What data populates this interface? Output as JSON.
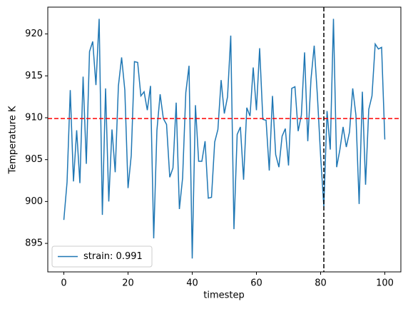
{
  "chart_data": {
    "type": "line",
    "xlabel": "timestep",
    "ylabel": "Temperature K",
    "x": [
      0,
      1,
      2,
      3,
      4,
      5,
      6,
      7,
      8,
      9,
      10,
      11,
      12,
      13,
      14,
      15,
      16,
      17,
      18,
      19,
      20,
      21,
      22,
      23,
      24,
      25,
      26,
      27,
      28,
      29,
      30,
      31,
      32,
      33,
      34,
      35,
      36,
      37,
      38,
      39,
      40,
      41,
      42,
      43,
      44,
      45,
      46,
      47,
      48,
      49,
      50,
      51,
      52,
      53,
      54,
      55,
      56,
      57,
      58,
      59,
      60,
      61,
      62,
      63,
      64,
      65,
      66,
      67,
      68,
      69,
      70,
      71,
      72,
      73,
      74,
      75,
      76,
      77,
      78,
      79,
      80,
      81,
      82,
      83,
      84,
      85,
      86,
      87,
      88,
      89,
      90,
      91,
      92,
      93,
      94,
      95,
      96,
      97,
      98,
      99,
      100
    ],
    "series": [
      {
        "name": "strain: 0.991",
        "color": "#1f77b4",
        "values": [
          897.8,
          902.3,
          913.3,
          902.4,
          908.5,
          902.2,
          914.9,
          904.5,
          917.9,
          919.1,
          913.9,
          921.8,
          898.4,
          913.5,
          900.0,
          908.6,
          903.5,
          913.8,
          917.2,
          913.3,
          901.6,
          905.5,
          916.7,
          916.6,
          912.6,
          913.1,
          910.9,
          913.8,
          895.6,
          908.5,
          912.8,
          909.9,
          909.2,
          902.9,
          904.0,
          911.8,
          899.1,
          902.8,
          913.0,
          916.2,
          893.2,
          911.5,
          904.8,
          904.8,
          907.2,
          900.4,
          900.5,
          907.1,
          908.6,
          914.5,
          910.5,
          912.5,
          919.8,
          896.7,
          908.0,
          908.9,
          902.6,
          911.2,
          910.2,
          916.0,
          910.9,
          918.3,
          909.8,
          909.7,
          903.7,
          912.6,
          905.6,
          904.1,
          907.8,
          908.7,
          904.3,
          913.5,
          913.7,
          908.4,
          910.3,
          917.8,
          907.2,
          914.6,
          918.6,
          912.6,
          905.4,
          899.4,
          910.8,
          906.2,
          921.8,
          904.1,
          906.2,
          908.9,
          906.5,
          908.3,
          913.5,
          910.3,
          899.7,
          913.1,
          902.0,
          911.0,
          912.6,
          918.8,
          918.2,
          918.4,
          907.4
        ]
      }
    ],
    "hlines": [
      {
        "value": 909.9,
        "color": "#ff0000"
      }
    ],
    "vlines": [
      {
        "value": 81,
        "color": "#000000"
      }
    ],
    "xlim": [
      -5,
      105
    ],
    "xticks": [
      0,
      20,
      40,
      60,
      80,
      100
    ],
    "ylim": [
      891.6,
      923.2
    ],
    "yticks": [
      895,
      900,
      905,
      910,
      915,
      920
    ],
    "legend": "lower left"
  }
}
